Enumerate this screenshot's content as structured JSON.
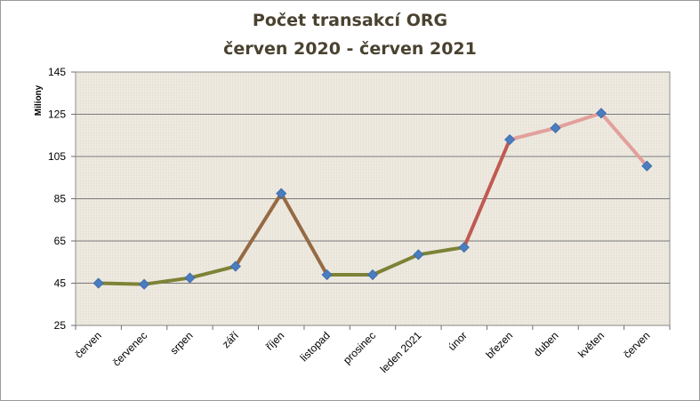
{
  "chart_data": {
    "type": "line",
    "title": "Počet transakcí ORG",
    "subtitle": "červen 2020 - červen 2021",
    "xlabel": "",
    "ylabel": "Miliony",
    "ylim": [
      25,
      145
    ],
    "yticks": [
      25,
      45,
      65,
      85,
      105,
      125,
      145
    ],
    "grid": true,
    "categories": [
      "červen",
      "červenec",
      "srpen",
      "září",
      "říjen",
      "listopad",
      "prosinec",
      "leden 2021",
      "únor",
      "březen",
      "duben",
      "květen",
      "červen"
    ],
    "series": [
      {
        "values": [
          45,
          44.5,
          47.5,
          53,
          87.5,
          49,
          49,
          58.5,
          62,
          113,
          118.5,
          125.5,
          100.5
        ]
      }
    ],
    "colors": {
      "olive": "#7d8236",
      "brown": "#956a44",
      "red": "#c05a52",
      "pink": "#e2a09b",
      "marker": "#4a7cc0",
      "plot_bg": "#ece7dd",
      "grid": "#7a7a7a"
    }
  }
}
